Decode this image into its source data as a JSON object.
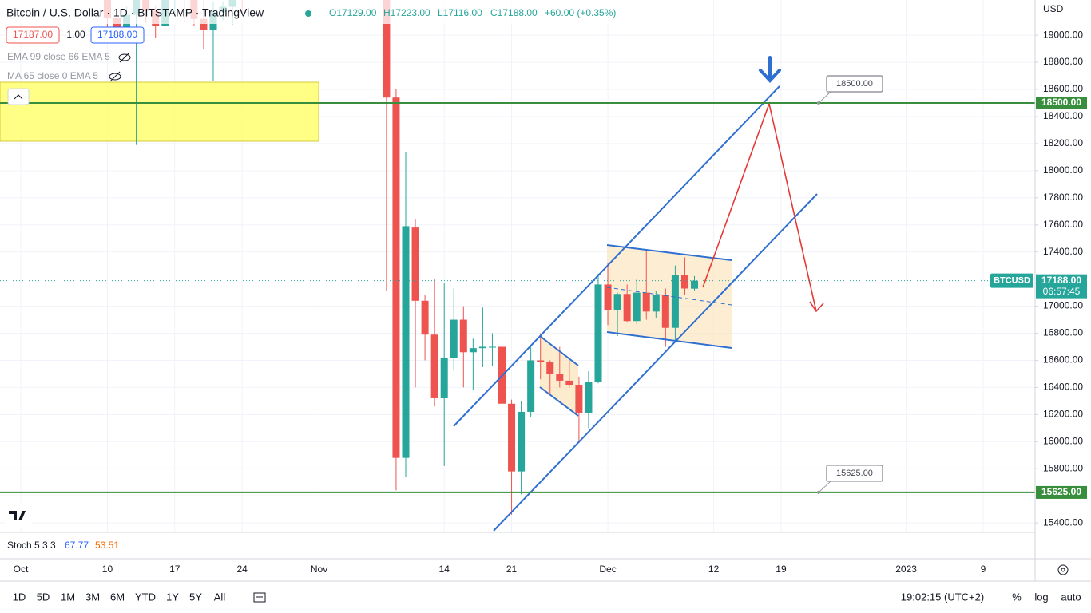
{
  "header": {
    "symbol": "Bitcoin / U.S. Dollar · 1D · BITSTAMP · TradingView",
    "ohlc": [
      "O17129.00",
      "H17223.00",
      "L17116.00",
      "C17188.00"
    ],
    "change": "+60.00 (+0.35%)",
    "bid": "17187.00",
    "spread": "1.00",
    "ask": "17188.00",
    "indicators": [
      "EMA 99 close 66 EMA 5",
      "MA 65 close 0 EMA 5"
    ]
  },
  "chart_data": {
    "type": "candlestick",
    "x": [
      "10-10",
      "10-11",
      "10-12",
      "10-13",
      "10-14",
      "10-15",
      "10-16",
      "10-17",
      "10-18",
      "10-19",
      "10-20",
      "10-21",
      "10-22",
      "10-23",
      "10-24",
      "11-08",
      "11-09",
      "11-10",
      "11-11",
      "11-12",
      "11-13",
      "11-14",
      "11-15",
      "11-16",
      "11-17",
      "11-18",
      "11-19",
      "11-20",
      "11-21",
      "11-22",
      "11-23",
      "11-24",
      "11-25",
      "11-26",
      "11-27",
      "11-28",
      "11-29",
      "11-30",
      "12-01",
      "12-02",
      "12-03",
      "12-04",
      "12-05",
      "12-06",
      "12-07",
      "12-08",
      "12-09",
      "12-10"
    ],
    "open": [
      19440,
      19130,
      19060,
      19150,
      19380,
      19180,
      19070,
      19270,
      19550,
      19330,
      19120,
      19040,
      19170,
      19210,
      19570,
      20600,
      18540,
      15880,
      17580,
      17040,
      16790,
      16320,
      16620,
      16900,
      16660,
      16690,
      16700,
      16700,
      16280,
      15780,
      16220,
      16600,
      16590,
      16500,
      16450,
      16420,
      16210,
      16440,
      17160,
      16970,
      17090,
      16890,
      17100,
      16960,
      17080,
      16840,
      17230,
      17129
    ],
    "high": [
      19520,
      19260,
      19210,
      19510,
      19950,
      19220,
      19410,
      19680,
      19690,
      19360,
      19350,
      19250,
      19250,
      19700,
      19600,
      20670,
      18600,
      18140,
      17640,
      17080,
      17200,
      17170,
      17130,
      17000,
      16760,
      16990,
      16800,
      16780,
      16310,
      16300,
      16700,
      16800,
      16600,
      16700,
      16600,
      16480,
      16520,
      17240,
      17320,
      17100,
      17160,
      17200,
      17420,
      17110,
      17130,
      17300,
      17360,
      17223
    ],
    "low": [
      19030,
      18860,
      18980,
      18190,
      19090,
      18980,
      19070,
      19160,
      19100,
      19070,
      18900,
      18660,
      19110,
      19080,
      19160,
      17110,
      15640,
      15740,
      16400,
      16600,
      16260,
      15820,
      16530,
      16400,
      16380,
      16550,
      16560,
      16160,
      15460,
      15610,
      16180,
      16460,
      16350,
      16400,
      16400,
      16000,
      16100,
      16430,
      16860,
      16780,
      16880,
      16870,
      16900,
      16910,
      16700,
      16740,
      17080,
      17116
    ],
    "close": [
      19130,
      19060,
      19150,
      19380,
      19180,
      19070,
      19270,
      19550,
      19330,
      19120,
      19040,
      19170,
      19210,
      19570,
      19340,
      18540,
      15880,
      17590,
      17040,
      16790,
      16320,
      16620,
      16900,
      16660,
      16690,
      16700,
      16700,
      16280,
      15780,
      16220,
      16600,
      16590,
      16500,
      16450,
      16420,
      16210,
      16440,
      17160,
      16970,
      17090,
      16890,
      17100,
      16960,
      17080,
      16840,
      17230,
      17130,
      17188
    ],
    "up_color": "#26a69a",
    "down_color": "#ef5350",
    "ylim": [
      15330,
      19260
    ],
    "yticks": [
      {
        "value": 15400,
        "label": "15400.00"
      },
      {
        "value": 15600,
        "label": "15600.00"
      },
      {
        "value": 15800,
        "label": "15800.00"
      },
      {
        "value": 16000,
        "label": "16000.00"
      },
      {
        "value": 16200,
        "label": "16200.00"
      },
      {
        "value": 16400,
        "label": "16400.00"
      },
      {
        "value": 16600,
        "label": "16600.00"
      },
      {
        "value": 16800,
        "label": "16800.00"
      },
      {
        "value": 17000,
        "label": "17000.00"
      },
      {
        "value": 17200,
        "label": "17200.00"
      },
      {
        "value": 17400,
        "label": "17400.00"
      },
      {
        "value": 17600,
        "label": "17600.00"
      },
      {
        "value": 17800,
        "label": "17800.00"
      },
      {
        "value": 18000,
        "label": "18000.00"
      },
      {
        "value": 18200,
        "label": "18200.00"
      },
      {
        "value": 18400,
        "label": "18400.00"
      },
      {
        "value": 18600,
        "label": "18600.00"
      },
      {
        "value": 18800,
        "label": "18800.00"
      },
      {
        "value": 19000,
        "label": "19000.00"
      }
    ],
    "xticks": [
      {
        "value": "10-01",
        "label": "Oct"
      },
      {
        "value": "10-10",
        "label": "10"
      },
      {
        "value": "10-17",
        "label": "17"
      },
      {
        "value": "10-24",
        "label": "24"
      },
      {
        "value": "11-01",
        "label": "Nov"
      },
      {
        "value": "11-14",
        "label": "14"
      },
      {
        "value": "11-21",
        "label": "21"
      },
      {
        "value": "12-01",
        "label": "Dec"
      },
      {
        "value": "12-12",
        "label": "12"
      },
      {
        "value": "12-19",
        "label": "19"
      },
      {
        "value": "01-01",
        "label": "2023"
      },
      {
        "value": "01-09",
        "label": "9"
      }
    ],
    "grid": true,
    "currency": "USD",
    "hlines": [
      {
        "value": 18500,
        "label": "18500.00"
      },
      {
        "value": 15625,
        "label": "15625.00"
      }
    ],
    "hline_color": "#388e3c",
    "last_price": {
      "value": 17188,
      "label": "17188.00"
    },
    "countdown": "06:57:45",
    "symbol_tag": "BTCUSD",
    "last_color": "#26a69a"
  },
  "oscillator": {
    "name": "Stoch 5 3 3",
    "values": [
      "67.77",
      "53.51"
    ]
  },
  "toolbar": {
    "ranges": [
      "1D",
      "5D",
      "1M",
      "3M",
      "6M",
      "YTD",
      "1Y",
      "5Y",
      "All"
    ],
    "time": "19:02:15 (UTC+2)",
    "options": [
      "%",
      "log",
      "auto"
    ]
  }
}
